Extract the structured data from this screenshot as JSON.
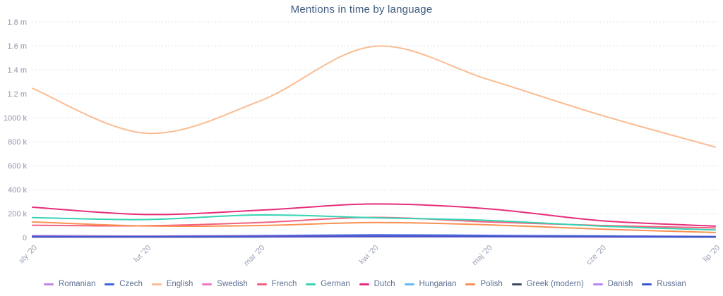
{
  "chart_data": {
    "type": "line",
    "title": "Mentions in time by language",
    "x_tick_labels": [
      "sty '20",
      "lut '20",
      "mar '20",
      "kwi '20",
      "maj '20",
      "cze '20",
      "lip '20"
    ],
    "y_tick_labels": [
      "1.8 m",
      "1.6 m",
      "1.4 m",
      "1.2 m",
      "1000 k",
      "800 k",
      "600 k",
      "400 k",
      "200 k",
      "0"
    ],
    "y_unit": "thousands of mentions",
    "ylim_thousands": [
      0,
      1800
    ],
    "grid": "horizontal-dotted",
    "legend_position": "bottom",
    "line_style": "smooth",
    "series": [
      {
        "name": "Romanian",
        "color": "#c583e3",
        "values_k": [
          4,
          4,
          5,
          6,
          5,
          4,
          3
        ]
      },
      {
        "name": "Czech",
        "color": "#3a66e0",
        "values_k": [
          15,
          12,
          16,
          22,
          18,
          13,
          9
        ]
      },
      {
        "name": "English",
        "color": "#fbbc92",
        "values_k": [
          1245,
          870,
          1140,
          1595,
          1320,
          1020,
          755
        ]
      },
      {
        "name": "Swedish",
        "color": "#f574c0",
        "values_k": [
          12,
          10,
          12,
          14,
          12,
          9,
          7
        ]
      },
      {
        "name": "French",
        "color": "#f2607f",
        "values_k": [
          102,
          98,
          125,
          168,
          130,
          100,
          80
        ]
      },
      {
        "name": "German",
        "color": "#35d4b3",
        "values_k": [
          166,
          150,
          188,
          165,
          143,
          95,
          63
        ]
      },
      {
        "name": "Dutch",
        "color": "#e62e7b",
        "values_k": [
          253,
          192,
          228,
          280,
          240,
          140,
          95
        ]
      },
      {
        "name": "Hungarian",
        "color": "#66baf5",
        "values_k": [
          6,
          5,
          7,
          9,
          8,
          6,
          4
        ]
      },
      {
        "name": "Polish",
        "color": "#fa9152",
        "values_k": [
          130,
          96,
          100,
          125,
          106,
          70,
          42
        ]
      },
      {
        "name": "Greek (modern)",
        "color": "#3d4a5c",
        "values_k": [
          3,
          3,
          4,
          6,
          9,
          6,
          4
        ]
      },
      {
        "name": "Danish",
        "color": "#b685ed",
        "values_k": [
          5,
          5,
          6,
          8,
          10,
          7,
          5
        ]
      },
      {
        "name": "Russian",
        "color": "#3b57d0",
        "values_k": [
          8,
          7,
          9,
          12,
          10,
          8,
          6
        ]
      }
    ],
    "style_colors": {
      "title_text": "#3d5a7e",
      "y_tick_text": "#8d95a9",
      "x_tick_text": "#9aa2b6",
      "legend_text": "#5d7092",
      "gridline": "#cfd3dc",
      "background": "#ffffff"
    }
  }
}
